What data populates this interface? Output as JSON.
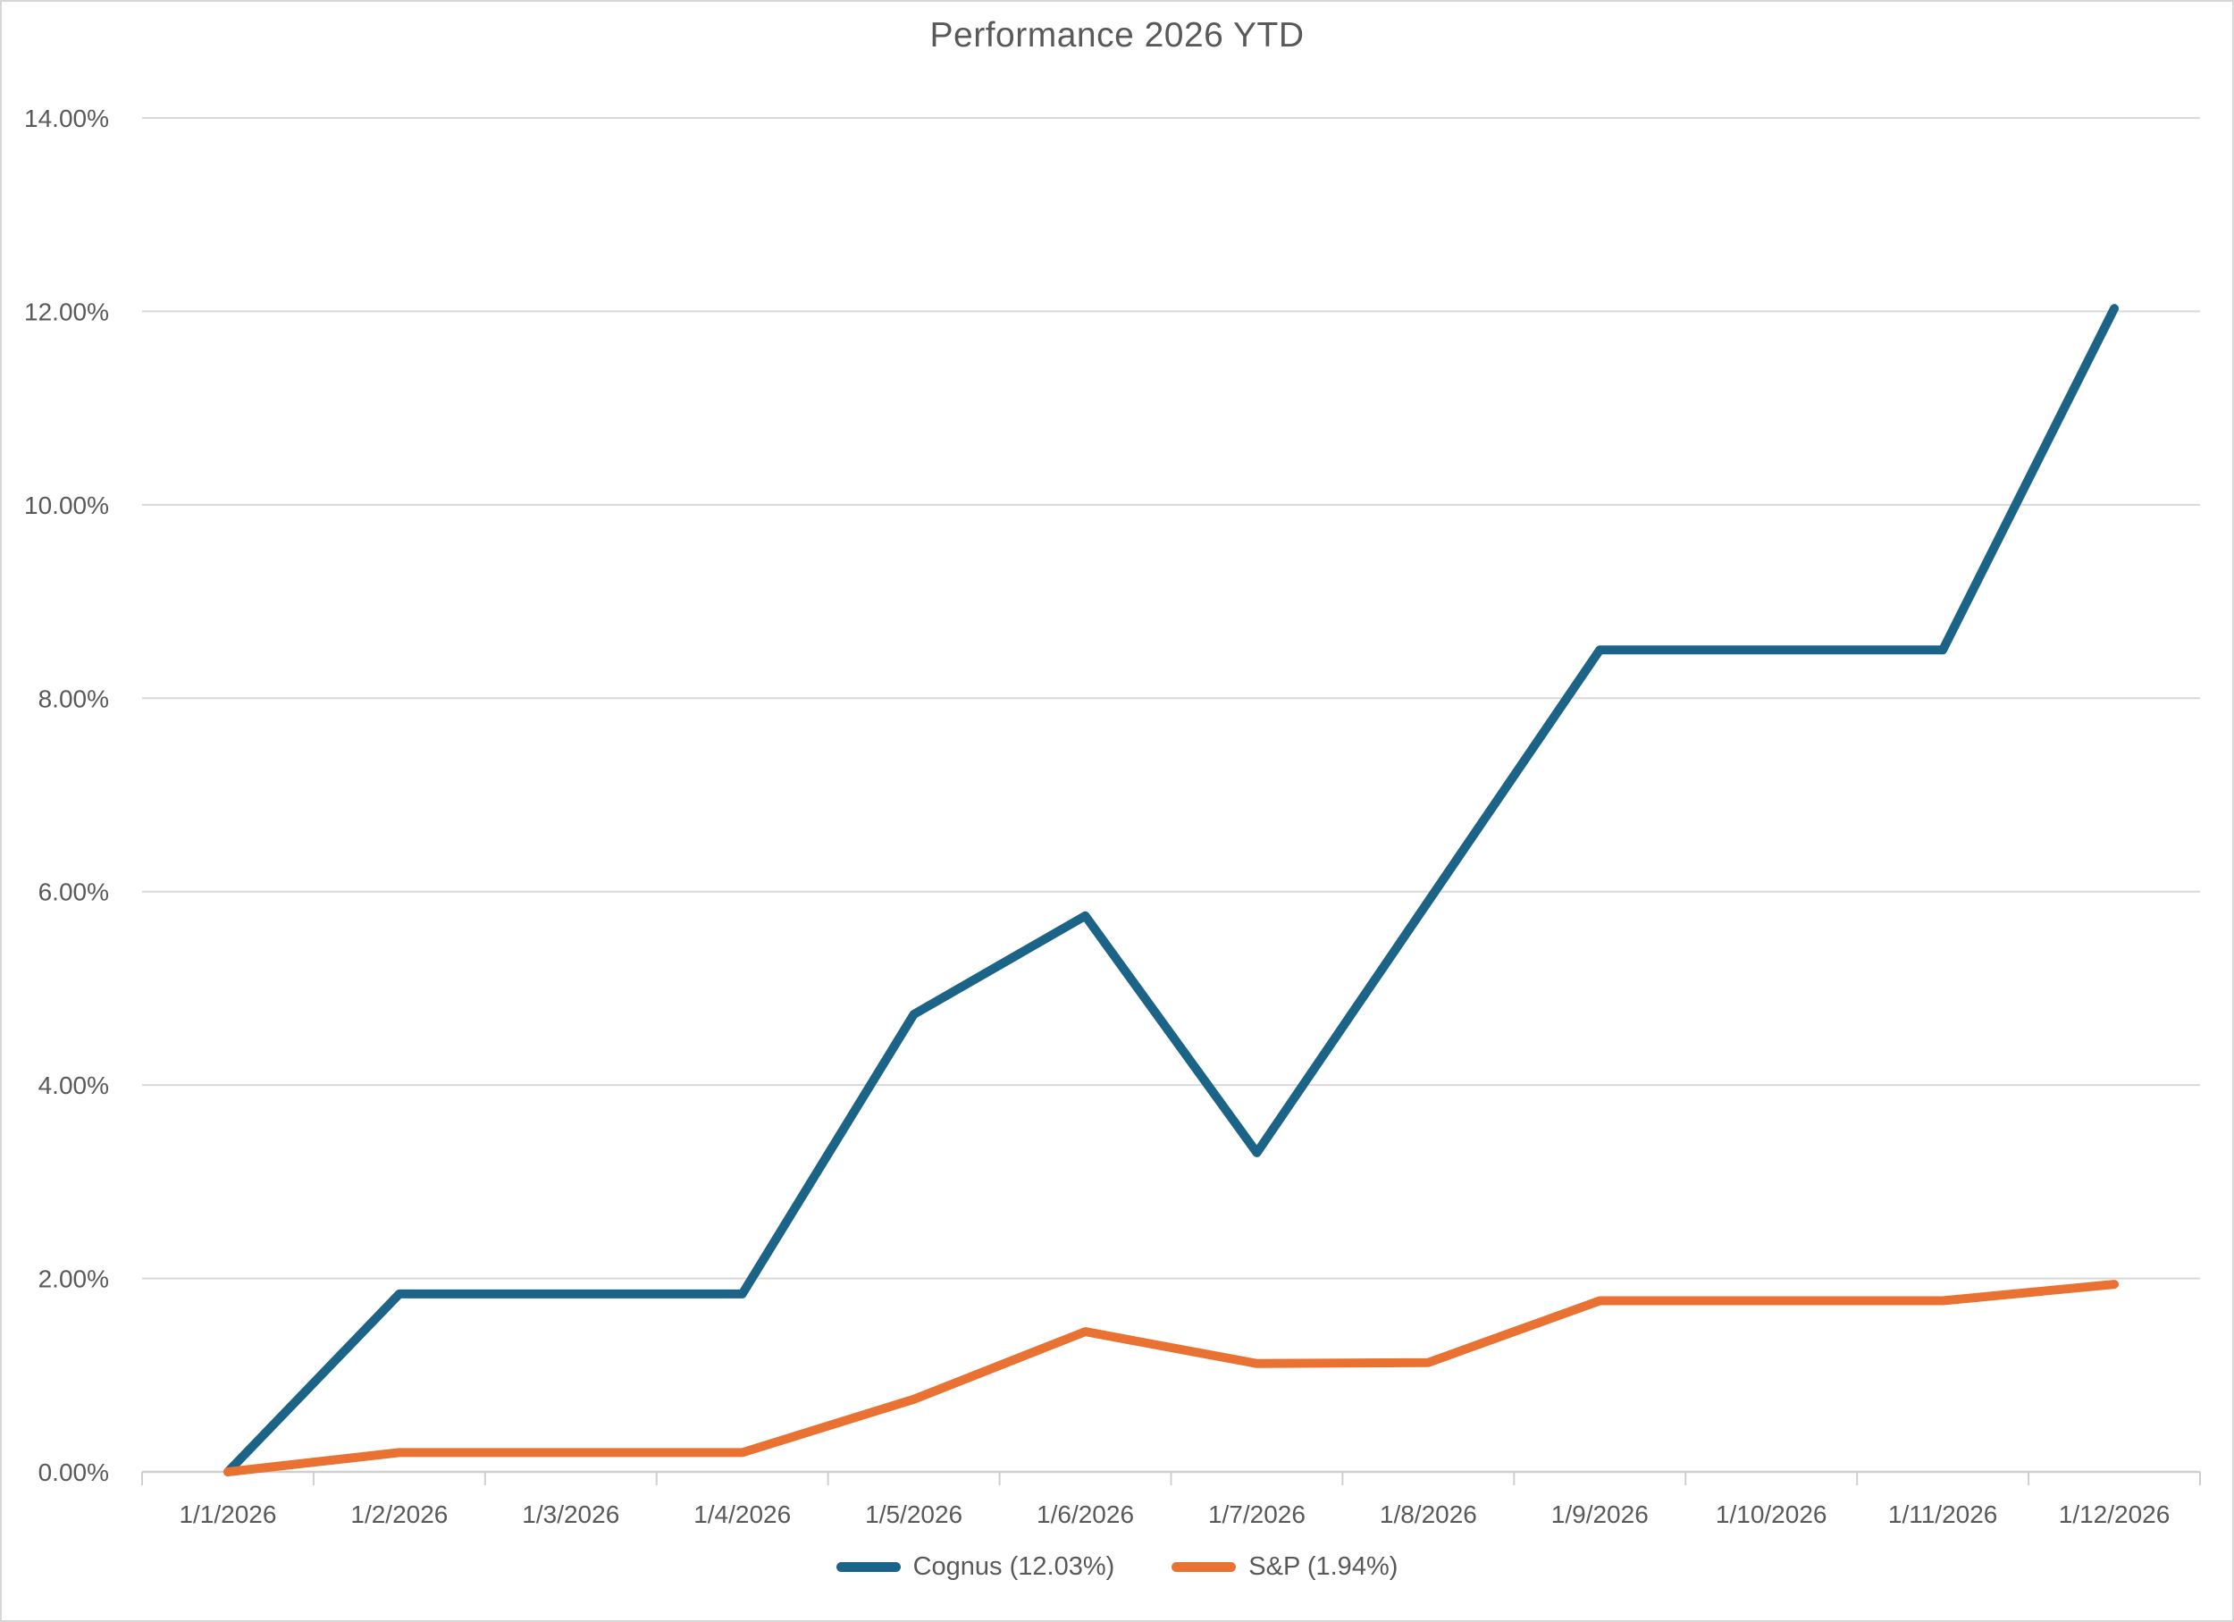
{
  "chart_data": {
    "type": "line",
    "title": "Performance 2026 YTD",
    "categories": [
      "1/1/2026",
      "1/2/2026",
      "1/3/2026",
      "1/4/2026",
      "1/5/2026",
      "1/6/2026",
      "1/7/2026",
      "1/8/2026",
      "1/9/2026",
      "1/10/2026",
      "1/11/2026",
      "1/12/2026"
    ],
    "series": [
      {
        "name": "Cognus (12.03%)",
        "color": "#1C6487",
        "values": [
          0.0,
          1.84,
          1.84,
          1.84,
          4.73,
          5.75,
          3.3,
          5.9,
          8.5,
          8.5,
          8.5,
          12.03
        ]
      },
      {
        "name": "S&P (1.94%)",
        "color": "#E97132",
        "values": [
          0.0,
          0.2,
          0.2,
          0.2,
          0.75,
          1.45,
          1.12,
          1.13,
          1.77,
          1.77,
          1.77,
          1.94
        ]
      }
    ],
    "y_axis": {
      "min": 0,
      "max": 14,
      "step": 2,
      "tick_labels": [
        "0.00%",
        "2.00%",
        "4.00%",
        "6.00%",
        "8.00%",
        "10.00%",
        "12.00%",
        "14.00%"
      ]
    },
    "xlabel": "",
    "ylabel": "",
    "grid": true,
    "legend_position": "bottom"
  },
  "colors": {
    "gridline": "#D9D9D9",
    "axis": "#CFCFCF",
    "text": "#595959",
    "background": "#FFFFFF",
    "border": "#D6D6D6"
  }
}
